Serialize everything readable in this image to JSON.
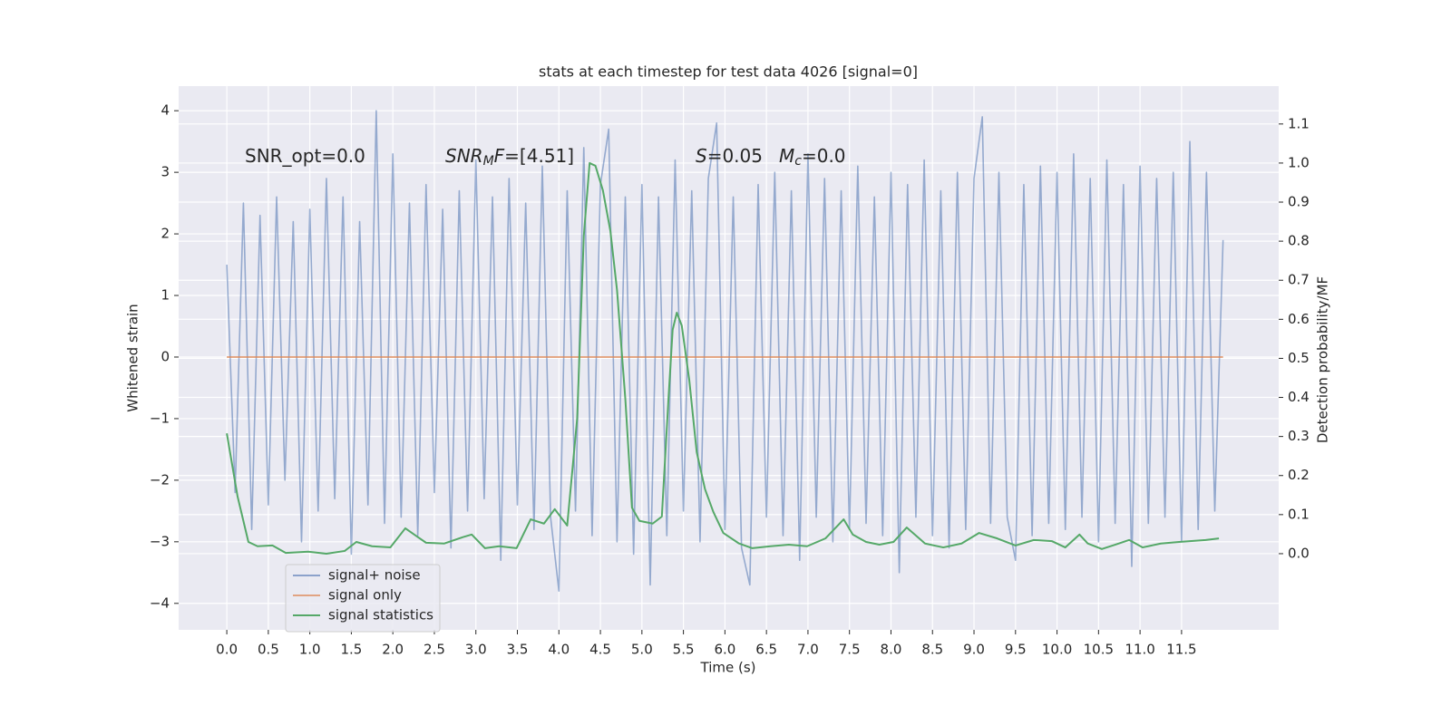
{
  "chart_data": {
    "type": "line",
    "title": "stats at each timestep for test data 4026 [signal=0]",
    "xlabel": "Time (s)",
    "ylabel": "Whitened strain",
    "y2label": "Detection probability/MF",
    "annotations": [
      [
        {
          "text": "SNR_opt=0.0"
        }
      ],
      [
        {
          "text": "SNR",
          "italic": true
        },
        {
          "text": "M",
          "italic": true,
          "sub": true
        },
        {
          "text": "F",
          "italic": true
        },
        {
          "text": "=[4.51]"
        }
      ],
      [
        {
          "text": "S",
          "italic": true
        },
        {
          "text": "=0.05"
        }
      ],
      [
        {
          "text": "M",
          "italic": true
        },
        {
          "text": "c",
          "italic": true,
          "sub": true
        },
        {
          "text": "=0.0"
        }
      ]
    ],
    "xlim": [
      -0.58,
      12.67
    ],
    "ylim": [
      -4.43,
      4.4
    ],
    "y2lim": [
      -0.195,
      1.197
    ],
    "xticks": [
      {
        "value": 0,
        "label": "0.0"
      },
      0.5,
      {
        "value": 1,
        "label": "1.0"
      },
      1.5,
      {
        "value": 2,
        "label": "2.0"
      },
      2.5,
      {
        "value": 3,
        "label": "3.0"
      },
      3.5,
      {
        "value": 4,
        "label": "4.0"
      },
      4.5,
      {
        "value": 5,
        "label": "5.0"
      },
      5.5,
      {
        "value": 6,
        "label": "6.0"
      },
      6.5,
      {
        "value": 7,
        "label": "7.0"
      },
      7.5,
      {
        "value": 8,
        "label": "8.0"
      },
      8.5,
      {
        "value": 9,
        "label": "9.0"
      },
      9.5,
      {
        "value": 10,
        "label": "10.0"
      },
      10.5,
      {
        "value": 11,
        "label": "11.0"
      },
      11.5
    ],
    "yticks": [
      {
        "value": -4,
        "label": "−4"
      },
      {
        "value": -3,
        "label": "−3"
      },
      {
        "value": -2,
        "label": "−2"
      },
      {
        "value": -1,
        "label": "−1"
      },
      0,
      1,
      2,
      3,
      4
    ],
    "y2ticks": [
      {
        "value": 0,
        "label": "0.0"
      },
      0.1,
      0.2,
      0.3,
      0.4,
      0.5,
      0.6,
      0.7,
      0.8,
      0.9,
      {
        "value": 1,
        "label": "1.0"
      },
      1.1
    ],
    "grid": true,
    "legend": "lower left",
    "series": [
      {
        "name": "signal+ noise",
        "color": "#4c72b0",
        "axis": "y",
        "x": [
          0,
          0.1,
          0.2,
          0.3,
          0.4,
          0.5,
          0.6,
          0.7,
          0.8,
          0.9,
          1,
          1.1,
          1.2,
          1.3,
          1.4,
          1.5,
          1.6,
          1.7,
          1.8,
          1.9,
          2,
          2.1,
          2.2,
          2.3,
          2.4,
          2.5,
          2.6,
          2.7,
          2.8,
          2.9,
          3,
          3.1,
          3.2,
          3.3,
          3.4,
          3.5,
          3.6,
          3.7,
          3.8,
          3.9,
          4,
          4.1,
          4.2,
          4.3,
          4.4,
          4.5,
          4.6,
          4.7,
          4.8,
          4.9,
          5,
          5.1,
          5.2,
          5.3,
          5.4,
          5.5,
          5.6,
          5.7,
          5.8,
          5.9,
          6,
          6.1,
          6.2,
          6.3,
          6.4,
          6.5,
          6.6,
          6.7,
          6.8,
          6.9,
          7,
          7.1,
          7.2,
          7.3,
          7.4,
          7.5,
          7.6,
          7.7,
          7.8,
          7.9,
          8,
          8.1,
          8.2,
          8.3,
          8.4,
          8.5,
          8.6,
          8.7,
          8.8,
          8.9,
          9,
          9.1,
          9.2,
          9.3,
          9.4,
          9.5,
          9.6,
          9.7,
          9.8,
          9.9,
          10,
          10.1,
          10.2,
          10.3,
          10.4,
          10.5,
          10.6,
          10.7,
          10.8,
          10.9,
          11,
          11.1,
          11.2,
          11.3,
          11.4,
          11.5,
          11.6,
          11.7,
          11.8,
          11.9,
          12
        ],
        "values": [
          1.5,
          -2.2,
          2.5,
          -2.8,
          2.3,
          -2.4,
          2.6,
          -2.0,
          2.2,
          -3.0,
          2.4,
          -2.5,
          2.9,
          -2.3,
          2.6,
          -3.2,
          2.2,
          -2.4,
          4.0,
          -2.7,
          3.3,
          -2.6,
          2.5,
          -2.9,
          2.8,
          -2.2,
          2.4,
          -3.1,
          2.7,
          -2.5,
          3.2,
          -2.3,
          2.6,
          -3.3,
          2.9,
          -2.4,
          2.5,
          -2.8,
          3.1,
          -2.6,
          -3.8,
          2.7,
          -2.5,
          3.4,
          -2.9,
          2.8,
          3.7,
          -3.0,
          2.6,
          -3.2,
          2.8,
          -3.7,
          2.6,
          -2.9,
          3.2,
          -2.5,
          2.7,
          -3.0,
          2.9,
          3.8,
          -2.8,
          2.6,
          -3.1,
          -3.7,
          2.8,
          -2.6,
          3.0,
          -2.9,
          2.7,
          -3.3,
          3.3,
          -2.6,
          2.9,
          -3.0,
          2.7,
          -2.8,
          3.1,
          -2.7,
          2.6,
          -2.9,
          3.0,
          -3.5,
          2.8,
          -2.6,
          3.2,
          -2.9,
          2.7,
          -3.1,
          3.0,
          -2.8,
          2.9,
          3.9,
          -2.7,
          3.0,
          -2.6,
          -3.3,
          2.8,
          -2.9,
          3.1,
          -2.7,
          3.0,
          -2.8,
          3.3,
          -2.6,
          2.9,
          -3.0,
          3.2,
          -2.7,
          2.8,
          -3.4,
          3.1,
          -2.7,
          2.9,
          -2.6,
          3.0,
          -3.0,
          3.5,
          -2.8,
          3.0,
          -2.5,
          1.9
        ]
      },
      {
        "name": "signal only",
        "color": "#dd8452",
        "axis": "y",
        "x": [
          0,
          12
        ],
        "values": [
          0,
          0
        ]
      },
      {
        "name": "signal statistics",
        "color": "#55a868",
        "axis": "y2",
        "x": [
          0,
          0.13,
          0.26,
          0.37,
          0.55,
          0.71,
          0.98,
          1.2,
          1.42,
          1.56,
          1.75,
          1.97,
          2.15,
          2.29,
          2.4,
          2.62,
          2.84,
          2.95,
          3.11,
          3.28,
          3.49,
          3.66,
          3.82,
          3.95,
          4.1,
          4.22,
          4.3,
          4.37,
          4.44,
          4.53,
          4.62,
          4.7,
          4.8,
          4.88,
          4.97,
          5.13,
          5.24,
          5.32,
          5.37,
          5.42,
          5.48,
          5.57,
          5.66,
          5.76,
          5.86,
          5.98,
          6.17,
          6.33,
          6.55,
          6.77,
          6.99,
          7.21,
          7.43,
          7.54,
          7.7,
          7.86,
          8.03,
          8.19,
          8.41,
          8.63,
          8.85,
          9.06,
          9.28,
          9.5,
          9.72,
          9.94,
          10.1,
          10.27,
          10.37,
          10.54,
          10.7,
          10.87,
          11.03,
          11.25,
          11.47,
          11.79,
          11.95
        ],
        "values": [
          0.308,
          0.146,
          0.03,
          0.019,
          0.021,
          0.002,
          0.005,
          0,
          0.007,
          0.03,
          0.019,
          0.016,
          0.065,
          0.044,
          0.028,
          0.026,
          0.042,
          0.049,
          0.014,
          0.019,
          0.014,
          0.088,
          0.077,
          0.114,
          0.072,
          0.346,
          0.814,
          1,
          0.993,
          0.93,
          0.826,
          0.675,
          0.397,
          0.118,
          0.084,
          0.077,
          0.095,
          0.397,
          0.573,
          0.617,
          0.584,
          0.445,
          0.26,
          0.165,
          0.107,
          0.053,
          0.026,
          0.014,
          0.019,
          0.023,
          0.019,
          0.039,
          0.088,
          0.049,
          0.03,
          0.023,
          0.03,
          0.067,
          0.026,
          0.016,
          0.026,
          0.053,
          0.039,
          0.021,
          0.035,
          0.032,
          0.016,
          0.049,
          0.026,
          0.012,
          0.023,
          0.035,
          0.016,
          0.026,
          0.03,
          0.035,
          0.039
        ]
      }
    ]
  }
}
